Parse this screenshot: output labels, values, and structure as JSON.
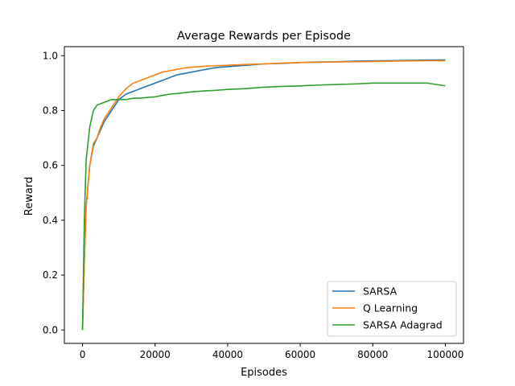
{
  "chart_data": {
    "type": "line",
    "title": "Average Rewards per Episode",
    "xlabel": "Episodes",
    "ylabel": "Reward",
    "xlim": [
      -5000,
      105000
    ],
    "ylim": [
      -0.049,
      1.033
    ],
    "xticks": [
      0,
      20000,
      40000,
      60000,
      80000,
      100000
    ],
    "xtick_labels": [
      "0",
      "20000",
      "40000",
      "60000",
      "80000",
      "100000"
    ],
    "yticks": [
      0.0,
      0.2,
      0.4,
      0.6,
      0.8,
      1.0
    ],
    "ytick_labels": [
      "0.0",
      "0.2",
      "0.4",
      "0.6",
      "0.8",
      "1.0"
    ],
    "grid": false,
    "legend_position": "lower-right",
    "series": [
      {
        "name": "SARSA",
        "color": "#1f77b4",
        "x": [
          0,
          500,
          1000,
          2000,
          3000,
          4000,
          5000,
          6000,
          7000,
          8000,
          9000,
          10000,
          12000,
          14000,
          16000,
          18000,
          20000,
          22000,
          24000,
          26000,
          28000,
          30000,
          32000,
          34000,
          36000,
          38000,
          40000,
          45000,
          50000,
          55000,
          60000,
          65000,
          70000,
          75000,
          80000,
          85000,
          90000,
          95000,
          100000
        ],
        "values": [
          0.0,
          0.25,
          0.45,
          0.6,
          0.67,
          0.7,
          0.73,
          0.76,
          0.78,
          0.8,
          0.82,
          0.84,
          0.86,
          0.87,
          0.88,
          0.89,
          0.9,
          0.91,
          0.92,
          0.93,
          0.935,
          0.94,
          0.945,
          0.95,
          0.955,
          0.958,
          0.96,
          0.965,
          0.97,
          0.972,
          0.975,
          0.977,
          0.978,
          0.98,
          0.981,
          0.982,
          0.983,
          0.984,
          0.985
        ]
      },
      {
        "name": "Q Learning",
        "color": "#ff7f0e",
        "x": [
          0,
          500,
          1000,
          2000,
          3000,
          4000,
          5000,
          6000,
          7000,
          8000,
          9000,
          10000,
          12000,
          14000,
          16000,
          18000,
          20000,
          22000,
          24000,
          26000,
          28000,
          30000,
          32000,
          34000,
          36000,
          38000,
          40000,
          45000,
          50000,
          55000,
          60000,
          65000,
          70000,
          75000,
          80000,
          85000,
          90000,
          95000,
          100000
        ],
        "values": [
          0.0,
          0.25,
          0.45,
          0.6,
          0.68,
          0.7,
          0.74,
          0.77,
          0.79,
          0.81,
          0.83,
          0.85,
          0.88,
          0.9,
          0.91,
          0.92,
          0.93,
          0.94,
          0.945,
          0.95,
          0.955,
          0.958,
          0.96,
          0.962,
          0.963,
          0.964,
          0.965,
          0.968,
          0.97,
          0.973,
          0.975,
          0.976,
          0.977,
          0.978,
          0.979,
          0.98,
          0.981,
          0.982,
          0.982
        ]
      },
      {
        "name": "SARSA Adagrad",
        "color": "#2ca02c",
        "x": [
          0,
          500,
          1000,
          2000,
          3000,
          4000,
          5000,
          6000,
          7000,
          8000,
          9000,
          10000,
          12000,
          14000,
          16000,
          18000,
          20000,
          22000,
          24000,
          26000,
          28000,
          30000,
          32000,
          34000,
          36000,
          38000,
          40000,
          45000,
          50000,
          55000,
          60000,
          65000,
          70000,
          75000,
          80000,
          85000,
          90000,
          95000,
          100000
        ],
        "values": [
          0.0,
          0.4,
          0.62,
          0.74,
          0.8,
          0.82,
          0.825,
          0.83,
          0.835,
          0.84,
          0.84,
          0.84,
          0.84,
          0.845,
          0.845,
          0.848,
          0.85,
          0.855,
          0.86,
          0.862,
          0.865,
          0.868,
          0.87,
          0.872,
          0.873,
          0.875,
          0.877,
          0.88,
          0.885,
          0.888,
          0.89,
          0.893,
          0.895,
          0.897,
          0.9,
          0.9,
          0.9,
          0.9,
          0.89
        ]
      }
    ]
  }
}
